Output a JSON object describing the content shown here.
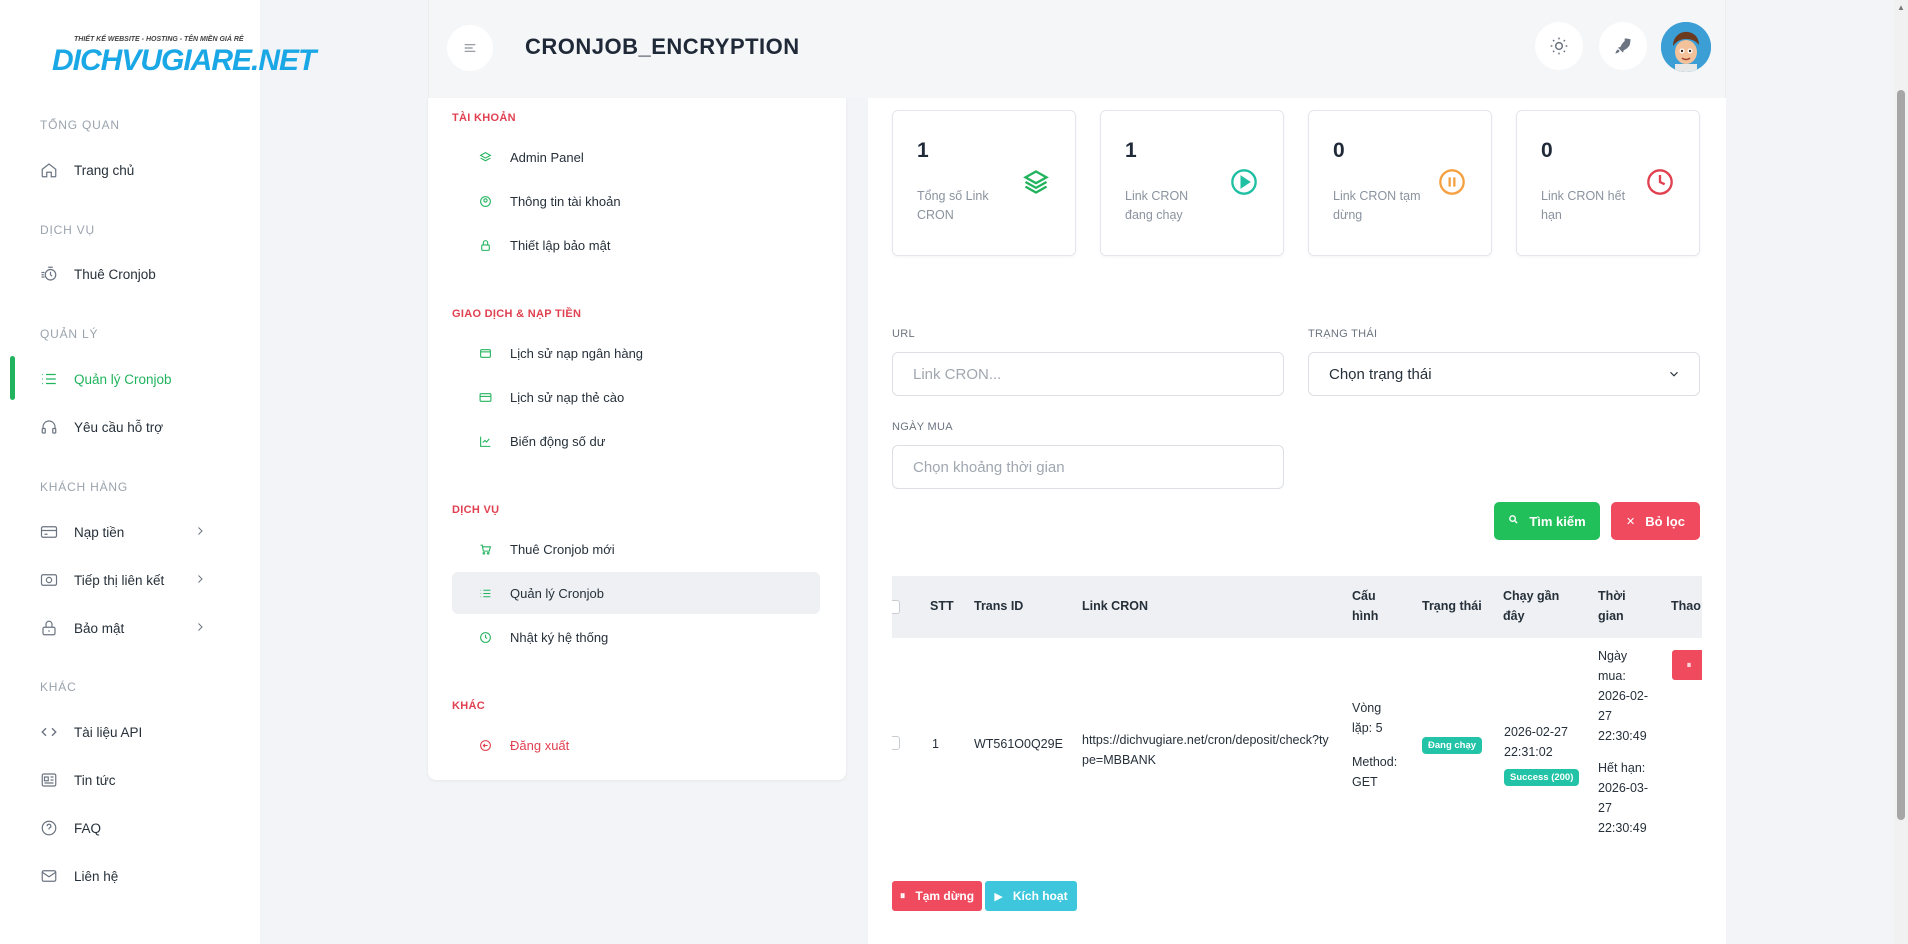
{
  "logo": {
    "tagline": "THIẾT KẾ WEBSITE - HOSTING - TÊN MIỀN GIÁ RẺ",
    "text": "DICHVUGIARE.NET"
  },
  "sidebar": {
    "sections": [
      {
        "label": "TỔNG QUAN"
      },
      {
        "label": "DỊCH VỤ"
      },
      {
        "label": "QUẢN LÝ"
      },
      {
        "label": "KHÁCH HÀNG"
      },
      {
        "label": "KHÁC"
      }
    ],
    "items": [
      {
        "label": "Trang chủ",
        "icon": "home-icon"
      },
      {
        "label": "Thuê Cronjob",
        "icon": "timer-icon"
      },
      {
        "label": "Quản lý Cronjob",
        "icon": "list-icon",
        "active": true
      },
      {
        "label": "Yêu cầu hỗ trợ",
        "icon": "headset-icon"
      },
      {
        "label": "Nạp tiền",
        "icon": "card-icon"
      },
      {
        "label": "Tiếp thị liên kết",
        "icon": "camera-icon"
      },
      {
        "label": "Bảo mật",
        "icon": "lock-icon"
      },
      {
        "label": "Tài liệu API",
        "icon": "code-icon"
      },
      {
        "label": "Tin tức",
        "icon": "newspaper-icon"
      },
      {
        "label": "FAQ",
        "icon": "question-icon"
      },
      {
        "label": "Liên hệ",
        "icon": "mail-icon"
      }
    ]
  },
  "header": {
    "title": "CRONJOB_ENCRYPTION"
  },
  "account_menu": {
    "sections": [
      {
        "label": "TÀI KHOẢN"
      },
      {
        "label": "GIAO DỊCH & NẠP TIỀN"
      },
      {
        "label": "DỊCH VỤ"
      },
      {
        "label": "KHÁC"
      }
    ],
    "items": [
      {
        "label": "Admin Panel"
      },
      {
        "label": "Thông tin tài khoản"
      },
      {
        "label": "Thiết lập bảo mật"
      },
      {
        "label": "Lịch sử nạp ngân hàng"
      },
      {
        "label": "Lịch sử nạp thẻ cào"
      },
      {
        "label": "Biến động số dư"
      },
      {
        "label": "Thuê Cronjob mới"
      },
      {
        "label": "Quản lý Cronjob"
      },
      {
        "label": "Nhật ký hệ thống"
      },
      {
        "label": "Đăng xuất"
      }
    ]
  },
  "stats": [
    {
      "value": "1",
      "label": "Tổng số Link CRON",
      "color": "#22b35e",
      "icon": "layers-icon"
    },
    {
      "value": "1",
      "label": "Link CRON đang chạy",
      "color": "#1fbfa3",
      "icon": "play-circle-icon"
    },
    {
      "value": "0",
      "label": "Link CRON tạm dừng",
      "color": "#f5a142",
      "icon": "pause-circle-icon"
    },
    {
      "value": "0",
      "label": "Link CRON hết hạn",
      "color": "#e04050",
      "icon": "clock-icon"
    }
  ],
  "filters": {
    "url_label": "URL",
    "url_placeholder": "Link CRON...",
    "status_label": "TRẠNG THÁI",
    "status_value": "Chọn trạng thái",
    "date_label": "NGÀY MUA",
    "date_placeholder": "Chọn khoảng thời gian",
    "search_label": "Tìm kiếm",
    "reset_label": "Bỏ lọc"
  },
  "table": {
    "headers": {
      "stt": "STT",
      "trans_id": "Trans ID",
      "link": "Link CRON",
      "config": "Cấu hình",
      "status": "Trạng thái",
      "last_run": "Chạy gần đây",
      "time": "Thời gian",
      "actions": "Thao tác"
    },
    "rows": [
      {
        "stt": "1",
        "trans_id": "WT561O0Q29E",
        "link": "https://dichvugiare.net/cron/deposit/check?type=MBBANK",
        "config_loop": "Vòng lặp: 5",
        "config_method": "Method: GET",
        "status": "Đang chạy",
        "last_run": "2026-02-27 22:31:02",
        "last_run_status": "Success (200)",
        "bought": "Ngày mua: 2026-02-27 22:30:49",
        "expires": "Hết hạn: 2026-03-27 22:30:49"
      }
    ]
  },
  "bulk_actions": {
    "pause_label": "Tạm dừng",
    "activate_label": "Kích hoạt"
  }
}
